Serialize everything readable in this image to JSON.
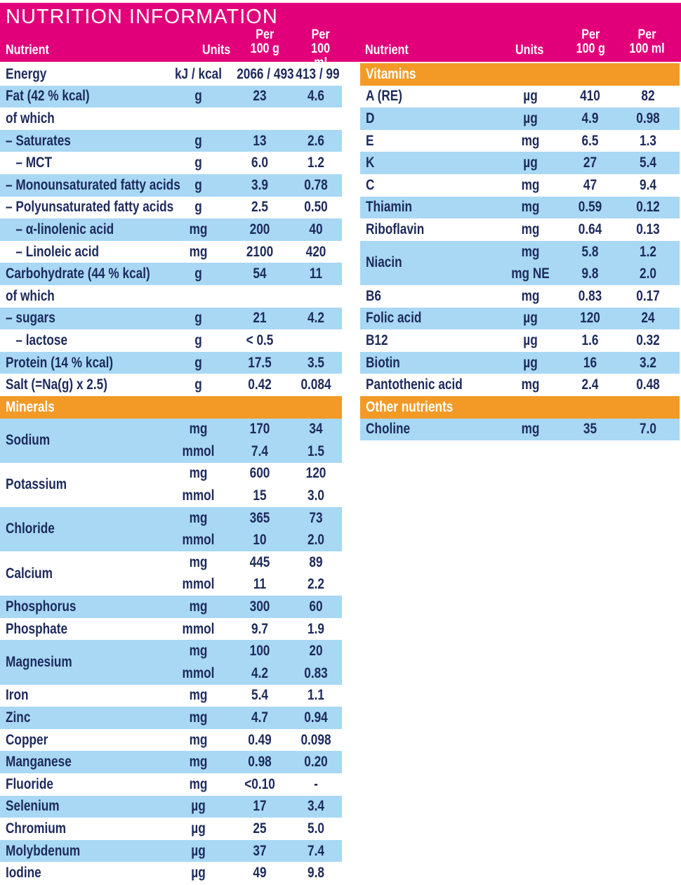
{
  "title": "NUTRITION INFORMATION",
  "headers": {
    "nutrient": "Nutrient",
    "units": "Units",
    "per100g": "Per\n100 g",
    "per100ml": "Per\n100 ml",
    "per": "Per",
    "g100": "100 g",
    "ml100": "100 ml"
  },
  "colors": {
    "banner": "#e2007a",
    "section": "#f39a26",
    "stripe": "#a8d8f4",
    "text": "#1d2a5c"
  },
  "left": [
    {
      "name": "Energy",
      "units": [
        "kJ / kcal"
      ],
      "g": [
        "2066 / 493"
      ],
      "ml": [
        "413 / 99"
      ],
      "bg": "white"
    },
    {
      "name": "Fat (42 % kcal)",
      "units": [
        "g"
      ],
      "g": [
        "23"
      ],
      "ml": [
        "4.6"
      ],
      "bg": "blue"
    },
    {
      "name": "of which",
      "units": [
        ""
      ],
      "g": [
        ""
      ],
      "ml": [
        ""
      ],
      "bg": "white"
    },
    {
      "name": "– Saturates",
      "units": [
        "g"
      ],
      "g": [
        "13"
      ],
      "ml": [
        "2.6"
      ],
      "bg": "blue"
    },
    {
      "name": "   – MCT",
      "units": [
        "g"
      ],
      "g": [
        "6.0"
      ],
      "ml": [
        "1.2"
      ],
      "bg": "white"
    },
    {
      "name": "– Monounsaturated fatty acids",
      "units": [
        "g"
      ],
      "g": [
        "3.9"
      ],
      "ml": [
        "0.78"
      ],
      "bg": "blue"
    },
    {
      "name": "– Polyunsaturated fatty acids",
      "units": [
        "g"
      ],
      "g": [
        "2.5"
      ],
      "ml": [
        "0.50"
      ],
      "bg": "white"
    },
    {
      "name": "   – α-linolenic acid",
      "units": [
        "mg"
      ],
      "g": [
        "200"
      ],
      "ml": [
        "40"
      ],
      "bg": "blue"
    },
    {
      "name": "   – Linoleic acid",
      "units": [
        "mg"
      ],
      "g": [
        "2100"
      ],
      "ml": [
        "420"
      ],
      "bg": "white"
    },
    {
      "name": "Carbohydrate (44 % kcal)",
      "units": [
        "g"
      ],
      "g": [
        "54"
      ],
      "ml": [
        "11"
      ],
      "bg": "blue"
    },
    {
      "name": "of which",
      "units": [
        ""
      ],
      "g": [
        ""
      ],
      "ml": [
        ""
      ],
      "bg": "white"
    },
    {
      "name": "– sugars",
      "units": [
        "g"
      ],
      "g": [
        "21"
      ],
      "ml": [
        "4.2"
      ],
      "bg": "blue"
    },
    {
      "name": "   – lactose",
      "units": [
        "g"
      ],
      "g": [
        "< 0.5"
      ],
      "ml": [
        ""
      ],
      "bg": "white"
    },
    {
      "name": "Protein (14 % kcal)",
      "units": [
        "g"
      ],
      "g": [
        "17.5"
      ],
      "ml": [
        "3.5"
      ],
      "bg": "blue"
    },
    {
      "name": "Salt (=Na(g) x 2.5)",
      "units": [
        "g"
      ],
      "g": [
        "0.42"
      ],
      "ml": [
        "0.084"
      ],
      "bg": "white"
    },
    {
      "name": "Minerals",
      "section": true
    },
    {
      "name": "Sodium",
      "units": [
        "mg",
        "mmol"
      ],
      "g": [
        "170",
        "7.4"
      ],
      "ml": [
        "34",
        "1.5"
      ],
      "bg": "blue"
    },
    {
      "name": "Potassium",
      "units": [
        "mg",
        "mmol"
      ],
      "g": [
        "600",
        "15"
      ],
      "ml": [
        "120",
        "3.0"
      ],
      "bg": "white"
    },
    {
      "name": "Chloride",
      "units": [
        "mg",
        "mmol"
      ],
      "g": [
        "365",
        "10"
      ],
      "ml": [
        "73",
        "2.0"
      ],
      "bg": "blue"
    },
    {
      "name": "Calcium",
      "units": [
        "mg",
        "mmol"
      ],
      "g": [
        "445",
        "11"
      ],
      "ml": [
        "89",
        "2.2"
      ],
      "bg": "white"
    },
    {
      "name": "Phosphorus",
      "units": [
        "mg"
      ],
      "g": [
        "300"
      ],
      "ml": [
        "60"
      ],
      "bg": "blue"
    },
    {
      "name": "Phosphate",
      "units": [
        "mmol"
      ],
      "g": [
        "9.7"
      ],
      "ml": [
        "1.9"
      ],
      "bg": "white"
    },
    {
      "name": "Magnesium",
      "units": [
        "mg",
        "mmol"
      ],
      "g": [
        "100",
        "4.2"
      ],
      "ml": [
        "20",
        "0.83"
      ],
      "bg": "blue"
    },
    {
      "name": "Iron",
      "units": [
        "mg"
      ],
      "g": [
        "5.4"
      ],
      "ml": [
        "1.1"
      ],
      "bg": "white"
    },
    {
      "name": "Zinc",
      "units": [
        "mg"
      ],
      "g": [
        "4.7"
      ],
      "ml": [
        "0.94"
      ],
      "bg": "blue"
    },
    {
      "name": "Copper",
      "units": [
        "mg"
      ],
      "g": [
        "0.49"
      ],
      "ml": [
        "0.098"
      ],
      "bg": "white"
    },
    {
      "name": "Manganese",
      "units": [
        "mg"
      ],
      "g": [
        "0.98"
      ],
      "ml": [
        "0.20"
      ],
      "bg": "blue"
    },
    {
      "name": "Fluoride",
      "units": [
        "mg"
      ],
      "g": [
        "<0.10"
      ],
      "ml": [
        "-"
      ],
      "bg": "white"
    },
    {
      "name": "Selenium",
      "units": [
        "µg"
      ],
      "g": [
        "17"
      ],
      "ml": [
        "3.4"
      ],
      "bg": "blue"
    },
    {
      "name": "Chromium",
      "units": [
        "µg"
      ],
      "g": [
        "25"
      ],
      "ml": [
        "5.0"
      ],
      "bg": "white"
    },
    {
      "name": "Molybdenum",
      "units": [
        "µg"
      ],
      "g": [
        "37"
      ],
      "ml": [
        "7.4"
      ],
      "bg": "blue"
    },
    {
      "name": "Iodine",
      "units": [
        "µg"
      ],
      "g": [
        "49"
      ],
      "ml": [
        "9.8"
      ],
      "bg": "white"
    }
  ],
  "right": [
    {
      "name": "Vitamins",
      "section": true
    },
    {
      "name": "A (RE)",
      "units": [
        "µg"
      ],
      "g": [
        "410"
      ],
      "ml": [
        "82"
      ],
      "bg": "white"
    },
    {
      "name": "D",
      "units": [
        "µg"
      ],
      "g": [
        "4.9"
      ],
      "ml": [
        "0.98"
      ],
      "bg": "blue"
    },
    {
      "name": "E",
      "units": [
        "mg"
      ],
      "g": [
        "6.5"
      ],
      "ml": [
        "1.3"
      ],
      "bg": "white"
    },
    {
      "name": "K",
      "units": [
        "µg"
      ],
      "g": [
        "27"
      ],
      "ml": [
        "5.4"
      ],
      "bg": "blue"
    },
    {
      "name": "C",
      "units": [
        "mg"
      ],
      "g": [
        "47"
      ],
      "ml": [
        "9.4"
      ],
      "bg": "white"
    },
    {
      "name": "Thiamin",
      "units": [
        "mg"
      ],
      "g": [
        "0.59"
      ],
      "ml": [
        "0.12"
      ],
      "bg": "blue"
    },
    {
      "name": "Riboflavin",
      "units": [
        "mg"
      ],
      "g": [
        "0.64"
      ],
      "ml": [
        "0.13"
      ],
      "bg": "white"
    },
    {
      "name": "Niacin",
      "units": [
        "mg",
        "mg NE"
      ],
      "g": [
        "5.8",
        "9.8"
      ],
      "ml": [
        "1.2",
        "2.0"
      ],
      "bg": "blue"
    },
    {
      "name": "B6",
      "units": [
        "mg"
      ],
      "g": [
        "0.83"
      ],
      "ml": [
        "0.17"
      ],
      "bg": "white"
    },
    {
      "name": "Folic acid",
      "units": [
        "µg"
      ],
      "g": [
        "120"
      ],
      "ml": [
        "24"
      ],
      "bg": "blue"
    },
    {
      "name": "B12",
      "units": [
        "µg"
      ],
      "g": [
        "1.6"
      ],
      "ml": [
        "0.32"
      ],
      "bg": "white"
    },
    {
      "name": "Biotin",
      "units": [
        "µg"
      ],
      "g": [
        "16"
      ],
      "ml": [
        "3.2"
      ],
      "bg": "blue"
    },
    {
      "name": "Pantothenic acid",
      "units": [
        "mg"
      ],
      "g": [
        "2.4"
      ],
      "ml": [
        "0.48"
      ],
      "bg": "white"
    },
    {
      "name": "Other nutrients",
      "section": true
    },
    {
      "name": "Choline",
      "units": [
        "mg"
      ],
      "g": [
        "35"
      ],
      "ml": [
        "7.0"
      ],
      "bg": "blue"
    }
  ]
}
